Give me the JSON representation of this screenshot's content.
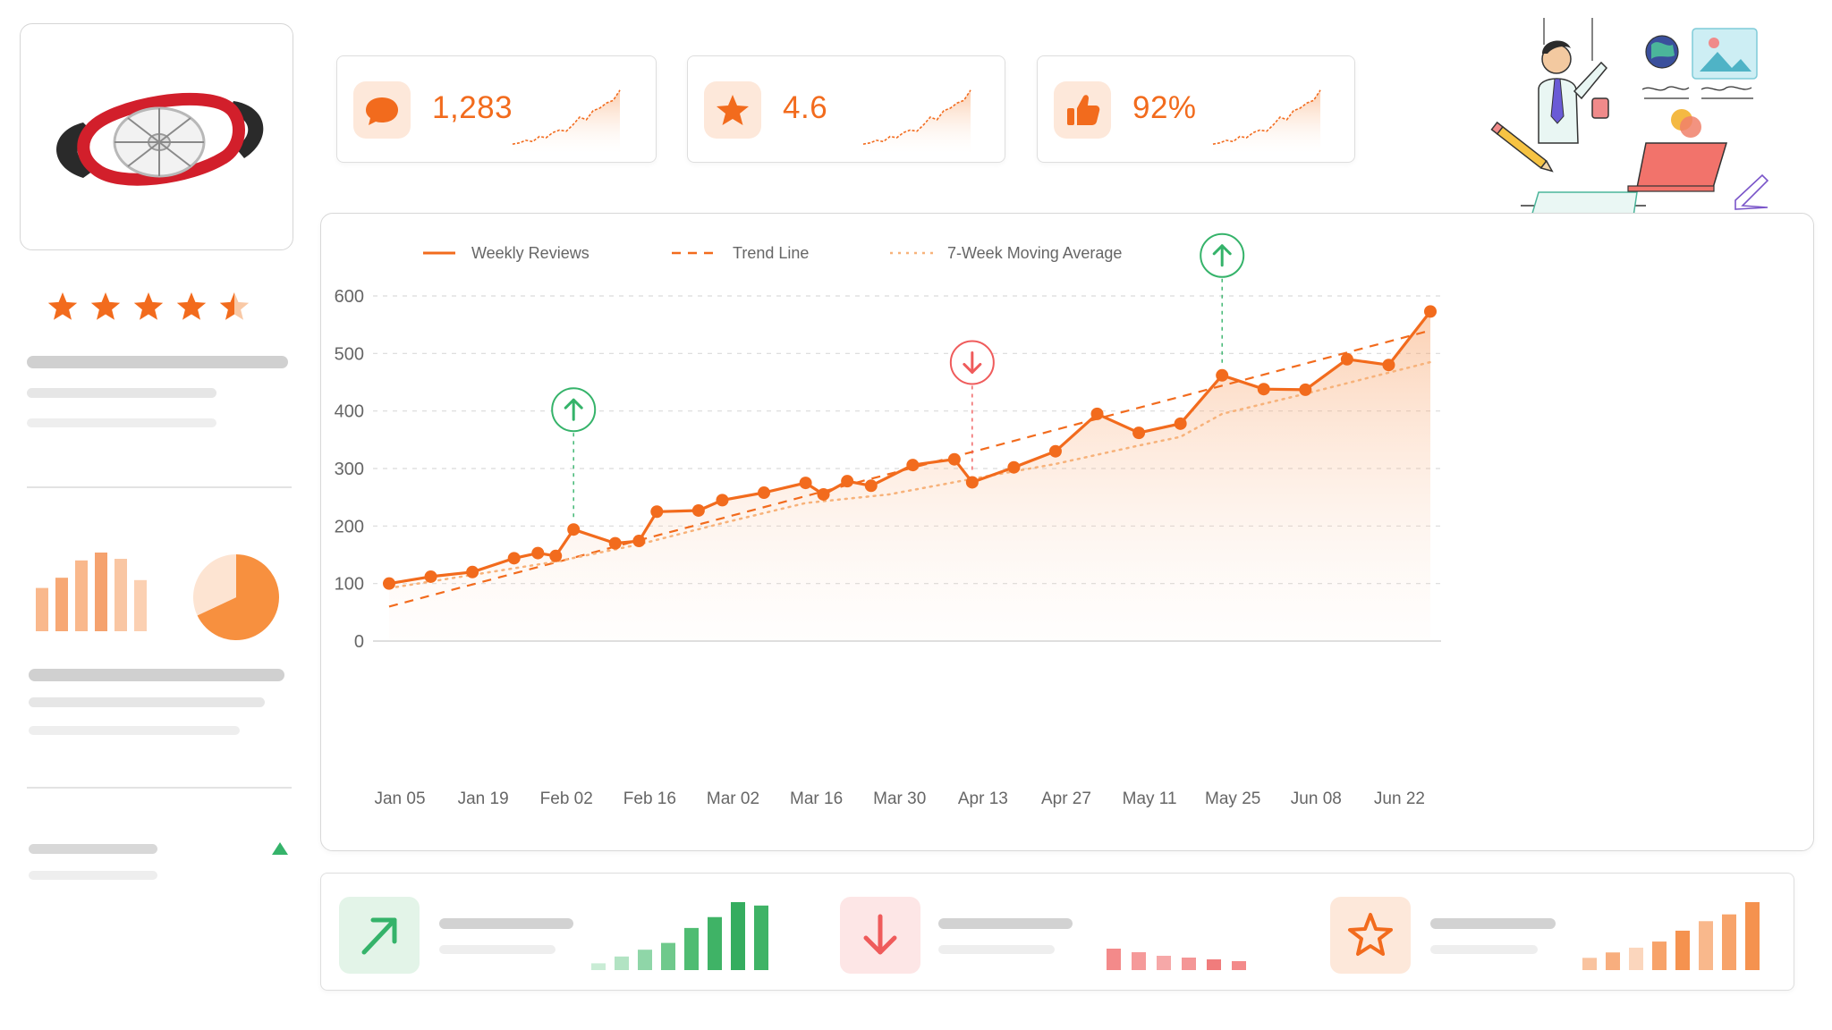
{
  "product": {
    "image_icon": "apple-slicer",
    "rating_stars": 4.5
  },
  "kpis": [
    {
      "icon": "speech-bubble-icon",
      "value": "1,283"
    },
    {
      "icon": "star-icon",
      "value": "4.6"
    },
    {
      "icon": "thumbs-up-icon",
      "value": "92%"
    }
  ],
  "colors": {
    "accent": "#f26b1d",
    "accent_light": "#fde8da",
    "up_green": "#35b36a",
    "down_red": "#ef5b5b",
    "trend_line": "#f26b1d",
    "moving_avg": "#f7b27a"
  },
  "chart_data": {
    "type": "line",
    "title": "",
    "xlabel": "",
    "ylabel": "",
    "ylim": [
      0,
      600
    ],
    "yticks": [
      0,
      100,
      200,
      300,
      400,
      500,
      600
    ],
    "x_tick_labels": [
      "Jan 05",
      "Jan 19",
      "Feb 02",
      "Feb 16",
      "Mar 02",
      "Mar 16",
      "Mar 30",
      "Apr 13",
      "Apr 27",
      "May 11",
      "May 25",
      "Jun 08",
      "Jun 22"
    ],
    "legend": {
      "position": "top-left",
      "entries": [
        "Weekly Reviews",
        "Trend Line",
        "7-Week Moving Average"
      ]
    },
    "grid": true,
    "x": [
      "Jan 05",
      "Jan 12",
      "Jan 19",
      "Jan 26",
      "Feb 02",
      "Feb 09",
      "Feb 16",
      "Feb 23",
      "Mar 02",
      "Mar 09",
      "Mar 16",
      "Mar 23",
      "Mar 30",
      "Apr 06",
      "Apr 13",
      "Apr 20",
      "Apr 27",
      "May 04",
      "May 11",
      "May 18",
      "May 25",
      "Jun 01",
      "Jun 08",
      "Jun 15",
      "Jun 22",
      "Jun 29"
    ],
    "series": [
      {
        "name": "Weekly Reviews",
        "style": "solid",
        "points": [
          {
            "x": "Jan 05",
            "y": 100
          },
          {
            "x": "Jan 12",
            "y": 112
          },
          {
            "x": "Jan 19",
            "y": 120
          },
          {
            "x": "Jan 26",
            "y": 144
          },
          {
            "x": "Jan 30",
            "y": 153
          },
          {
            "x": "Feb 02",
            "y": 148
          },
          {
            "x": "Feb 05",
            "y": 194
          },
          {
            "x": "Feb 12",
            "y": 170
          },
          {
            "x": "Feb 16",
            "y": 174
          },
          {
            "x": "Feb 19",
            "y": 225
          },
          {
            "x": "Feb 26",
            "y": 227
          },
          {
            "x": "Mar 02",
            "y": 245
          },
          {
            "x": "Mar 09",
            "y": 258
          },
          {
            "x": "Mar 16",
            "y": 275
          },
          {
            "x": "Mar 19",
            "y": 255
          },
          {
            "x": "Mar 23",
            "y": 278
          },
          {
            "x": "Mar 27",
            "y": 270
          },
          {
            "x": "Apr 03",
            "y": 306
          },
          {
            "x": "Apr 10",
            "y": 316
          },
          {
            "x": "Apr 13",
            "y": 276
          },
          {
            "x": "Apr 20",
            "y": 302
          },
          {
            "x": "Apr 27",
            "y": 330
          },
          {
            "x": "May 04",
            "y": 395
          },
          {
            "x": "May 11",
            "y": 362
          },
          {
            "x": "May 18",
            "y": 378
          },
          {
            "x": "May 25",
            "y": 462
          },
          {
            "x": "Jun 01",
            "y": 438
          },
          {
            "x": "Jun 08",
            "y": 437
          },
          {
            "x": "Jun 15",
            "y": 490
          },
          {
            "x": "Jun 22",
            "y": 480
          },
          {
            "x": "Jun 29",
            "y": 573
          }
        ]
      },
      {
        "name": "Trend Line",
        "style": "dashed",
        "points": [
          {
            "x": "Jan 05",
            "y": 60
          },
          {
            "x": "Jun 29",
            "y": 540
          }
        ]
      },
      {
        "name": "7-Week Moving Average",
        "style": "dotted",
        "points": [
          {
            "x": "Jan 05",
            "y": 92
          },
          {
            "x": "Feb 02",
            "y": 138
          },
          {
            "x": "Feb 16",
            "y": 168
          },
          {
            "x": "Mar 02",
            "y": 205
          },
          {
            "x": "Mar 16",
            "y": 240
          },
          {
            "x": "Mar 30",
            "y": 255
          },
          {
            "x": "Apr 13",
            "y": 282
          },
          {
            "x": "Apr 27",
            "y": 308
          },
          {
            "x": "May 11",
            "y": 340
          },
          {
            "x": "May 18",
            "y": 355
          },
          {
            "x": "May 25",
            "y": 395
          },
          {
            "x": "Jun 08",
            "y": 430
          },
          {
            "x": "Jun 29",
            "y": 485
          }
        ]
      }
    ],
    "annotations": [
      {
        "x": "Feb 05",
        "y": 194,
        "direction": "up"
      },
      {
        "x": "Apr 13",
        "y": 276,
        "direction": "down"
      },
      {
        "x": "May 25",
        "y": 462,
        "direction": "up"
      }
    ]
  },
  "bottom_panels": [
    {
      "icon": "trend-up-arrow-icon",
      "bars": [
        0.1,
        0.2,
        0.3,
        0.4,
        0.62,
        0.78,
        1.0,
        0.95
      ]
    },
    {
      "icon": "down-arrow-icon",
      "bars": [
        0.6,
        0.5,
        0.4,
        0.35,
        0.3,
        0.25
      ]
    },
    {
      "icon": "star-outline-icon",
      "bars": [
        0.18,
        0.26,
        0.33,
        0.42,
        0.58,
        0.72,
        0.82,
        1.0
      ]
    }
  ],
  "sidebar_charts": {
    "bar_values": [
      0.55,
      0.68,
      0.9,
      1.0,
      0.92,
      0.65
    ],
    "pie_slices": [
      0.68,
      0.32
    ]
  }
}
